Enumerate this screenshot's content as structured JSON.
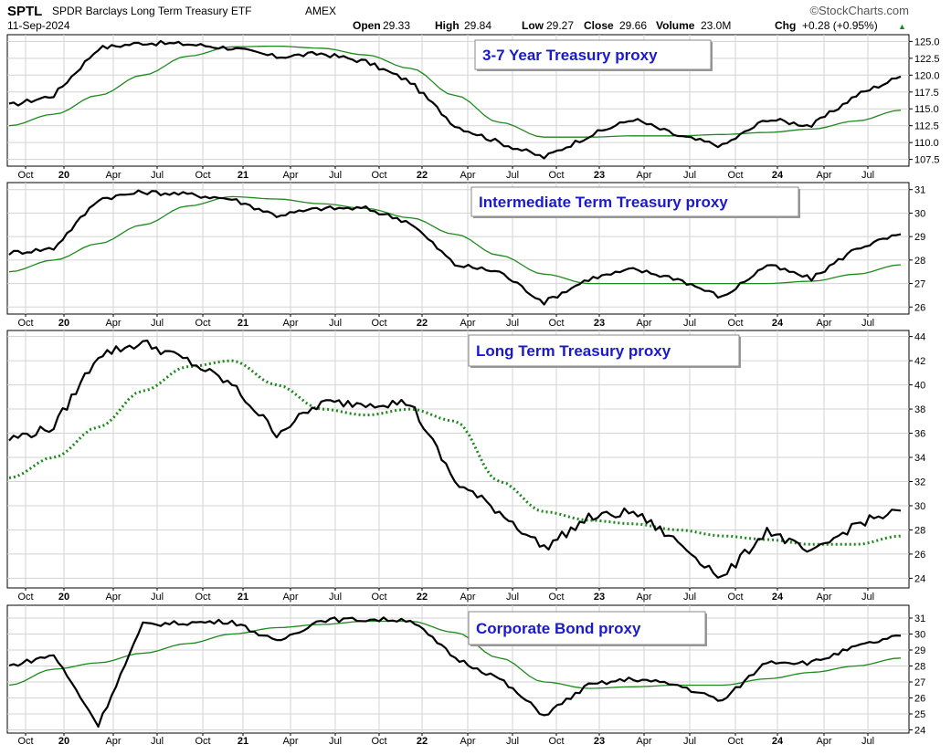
{
  "header": {
    "symbol": "SPTL",
    "name": "SPDR Barclays Long Term Treasury ETF",
    "exchange": "AMEX",
    "date": "11-Sep-2024",
    "brand": "©StockCharts.com",
    "open_label": "Open",
    "open": "29.33",
    "high_label": "High",
    "high": "29.84",
    "low_label": "Low",
    "low": "29.27",
    "close_label": "Close",
    "close": "29.66",
    "volume_label": "Volume",
    "volume": "23.0M",
    "chg_label": "Chg",
    "chg": "+0.28 (+0.95%)",
    "chg_arrow": "▲"
  },
  "colors": {
    "price": "#000000",
    "ma": "#1e8a1e",
    "title_text": "#1a1acc",
    "panel_border": "#000000",
    "grid": "#d3d3d3",
    "up_arrow": "#1e8a1e"
  },
  "x_axis_labels": [
    "Oct",
    "20",
    "Apr",
    "Jul",
    "Oct",
    "21",
    "Apr",
    "Jul",
    "Oct",
    "22",
    "Apr",
    "Jul",
    "Oct",
    "23",
    "Apr",
    "Jul",
    "Oct",
    "24",
    "Apr",
    "Jul"
  ],
  "chart_data": [
    {
      "type": "line",
      "title": "3-7 Year Treasury proxy",
      "ylim": [
        106.5,
        126
      ],
      "yticks": [
        107.5,
        110.0,
        112.5,
        115.0,
        117.5,
        120.0,
        122.5,
        125.0
      ],
      "ytick_labels": [
        "107.5",
        "110.0",
        "112.5",
        "115.0",
        "117.5",
        "120.0",
        "122.5",
        "125.0"
      ],
      "grid": true,
      "ma_style": "solid",
      "x": [
        "Oct 2019",
        "Jan 2020",
        "Apr 2020",
        "Jul 2020",
        "Oct 2020",
        "Jan 2021",
        "Apr 2021",
        "Jul 2021",
        "Oct 2021",
        "Jan 2022",
        "Apr 2022",
        "Jul 2022",
        "Oct 2022",
        "Jan 2023",
        "Apr 2023",
        "Jul 2023",
        "Oct 2023",
        "Jan 2024",
        "Apr 2024",
        "Jul 2024",
        "Sep 2024"
      ],
      "series": [
        {
          "values": [
            115.5,
            117.0,
            124.0,
            124.8,
            124.6,
            124.0,
            122.7,
            123.2,
            122.0,
            119.0,
            112.5,
            110.0,
            107.8,
            111.0,
            113.5,
            111.0,
            109.5,
            113.5,
            112.5,
            117.0,
            119.8
          ]
        },
        {
          "values": [
            112.5,
            114.2,
            117.0,
            120.0,
            122.8,
            124.2,
            124.3,
            124.0,
            123.0,
            121.0,
            117.0,
            113.0,
            110.8,
            110.8,
            111.0,
            111.0,
            111.2,
            111.5,
            112.0,
            113.2,
            114.8
          ]
        }
      ]
    },
    {
      "type": "line",
      "title": "Intermediate Term Treasury proxy",
      "ylim": [
        25.7,
        31.3
      ],
      "yticks": [
        26,
        27,
        28,
        29,
        30,
        31
      ],
      "ytick_labels": [
        "26",
        "27",
        "28",
        "29",
        "30",
        "31"
      ],
      "grid": true,
      "ma_style": "solid",
      "x": [
        "Oct 2019",
        "Jan 2020",
        "Apr 2020",
        "Jul 2020",
        "Oct 2020",
        "Jan 2021",
        "Apr 2021",
        "Jul 2021",
        "Oct 2021",
        "Jan 2022",
        "Apr 2022",
        "Jul 2022",
        "Oct 2022",
        "Jan 2023",
        "Apr 2023",
        "Jul 2023",
        "Oct 2023",
        "Jan 2024",
        "Apr 2024",
        "Jul 2024",
        "Sep 2024"
      ],
      "series": [
        {
          "values": [
            28.3,
            28.5,
            30.6,
            30.9,
            30.8,
            30.6,
            29.9,
            30.2,
            30.2,
            29.6,
            27.8,
            27.5,
            26.2,
            27.2,
            27.6,
            27.2,
            26.4,
            27.8,
            27.2,
            28.5,
            29.1
          ]
        },
        {
          "values": [
            27.5,
            28.0,
            28.7,
            29.5,
            30.3,
            30.7,
            30.6,
            30.4,
            30.2,
            29.8,
            29.1,
            28.2,
            27.4,
            27.0,
            27.0,
            27.0,
            27.0,
            27.0,
            27.1,
            27.4,
            27.8
          ]
        }
      ]
    },
    {
      "type": "line",
      "title": "Long Term Treasury proxy",
      "ylim": [
        23.2,
        44.5
      ],
      "yticks": [
        24,
        26,
        28,
        30,
        32,
        34,
        36,
        38,
        40,
        42,
        44
      ],
      "ytick_labels": [
        "24",
        "26",
        "28",
        "30",
        "32",
        "34",
        "36",
        "38",
        "40",
        "42",
        "44"
      ],
      "grid": true,
      "ma_style": "dotted",
      "x": [
        "Oct 2019",
        "Jan 2020",
        "Apr 2020",
        "Jul 2020",
        "Oct 2020",
        "Jan 2021",
        "Apr 2021",
        "Jul 2021",
        "Oct 2021",
        "Jan 2022",
        "Apr 2022",
        "Jul 2022",
        "Oct 2022",
        "Jan 2023",
        "Apr 2023",
        "Jul 2023",
        "Oct 2023",
        "Jan 2024",
        "Apr 2024",
        "Jul 2024",
        "Sep 2024"
      ],
      "series": [
        {
          "values": [
            35.5,
            36.5,
            42.5,
            43.5,
            42.0,
            40.0,
            36.0,
            38.5,
            38.5,
            38.5,
            32.0,
            29.5,
            26.5,
            29.0,
            29.5,
            27.0,
            24.0,
            28.0,
            26.0,
            28.5,
            29.6
          ]
        },
        {
          "values": [
            32.3,
            34.0,
            36.5,
            39.5,
            41.5,
            42.0,
            40.0,
            38.0,
            37.5,
            38.0,
            37.0,
            32.0,
            29.5,
            28.8,
            28.5,
            28.0,
            27.5,
            27.2,
            26.8,
            26.8,
            27.5
          ]
        }
      ]
    },
    {
      "type": "line",
      "title": "Corporate Bond proxy",
      "ylim": [
        23.8,
        31.8
      ],
      "yticks": [
        24,
        25,
        26,
        27,
        28,
        29,
        30,
        31
      ],
      "ytick_labels": [
        "24",
        "25",
        "26",
        "27",
        "28",
        "29",
        "30",
        "31"
      ],
      "grid": true,
      "ma_style": "solid",
      "x": [
        "Oct 2019",
        "Jan 2020",
        "Apr 2020",
        "Jul 2020",
        "Oct 2020",
        "Jan 2021",
        "Apr 2021",
        "Jul 2021",
        "Oct 2021",
        "Jan 2022",
        "Apr 2022",
        "Jul 2022",
        "Oct 2022",
        "Jan 2023",
        "Apr 2023",
        "Jul 2023",
        "Oct 2023",
        "Jan 2024",
        "Apr 2024",
        "Jul 2024",
        "Sep 2024"
      ],
      "series": [
        {
          "values": [
            28.0,
            28.7,
            24.3,
            30.6,
            30.7,
            30.8,
            29.5,
            30.9,
            30.9,
            30.9,
            28.5,
            27.2,
            24.9,
            26.8,
            27.2,
            26.8,
            25.8,
            28.3,
            28.2,
            29.2,
            29.9
          ]
        },
        {
          "values": [
            26.8,
            27.8,
            28.2,
            28.8,
            29.4,
            30.0,
            30.4,
            30.6,
            30.8,
            30.8,
            30.1,
            28.5,
            27.0,
            26.6,
            26.7,
            26.8,
            26.8,
            27.2,
            27.6,
            28.0,
            28.5
          ]
        }
      ]
    }
  ]
}
